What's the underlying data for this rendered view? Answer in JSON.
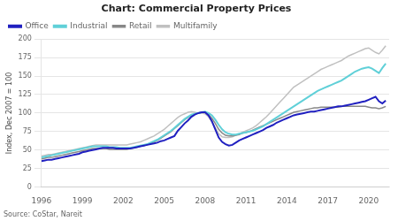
{
  "chart_data": {
    "type": "line",
    "title": "Chart: Commercial Property Prices",
    "ylabel": "Index, Dec 2007 = 100",
    "annotations": [
      "Source: CoStar, Nareit"
    ],
    "x": [
      1996,
      1996.25,
      1996.5,
      1996.75,
      1997,
      1997.25,
      1997.5,
      1997.75,
      1998,
      1998.25,
      1998.5,
      1998.75,
      1999,
      1999.25,
      1999.5,
      1999.75,
      2000,
      2000.25,
      2000.5,
      2000.75,
      2001,
      2001.25,
      2001.5,
      2001.75,
      2002,
      2002.25,
      2002.5,
      2002.75,
      2003,
      2003.25,
      2003.5,
      2003.75,
      2004,
      2004.25,
      2004.5,
      2004.75,
      2005,
      2005.25,
      2005.5,
      2005.75,
      2006,
      2006.25,
      2006.5,
      2006.75,
      2007,
      2007.25,
      2007.5,
      2007.75,
      2008,
      2008.25,
      2008.5,
      2008.75,
      2009,
      2009.25,
      2009.5,
      2009.75,
      2010,
      2010.25,
      2010.5,
      2010.75,
      2011,
      2011.25,
      2011.5,
      2011.75,
      2012,
      2012.25,
      2012.5,
      2012.75,
      2013,
      2013.25,
      2013.5,
      2013.75,
      2014,
      2014.25,
      2014.5,
      2014.75,
      2015,
      2015.25,
      2015.5,
      2015.75,
      2016,
      2016.25,
      2016.5,
      2016.75,
      2017,
      2017.25,
      2017.5,
      2017.75,
      2018,
      2018.25,
      2018.5,
      2018.75,
      2019,
      2019.25,
      2019.5,
      2019.75,
      2020,
      2020.25,
      2020.5,
      2020.75,
      2021,
      2021.25
    ],
    "series": [
      {
        "name": "Multifamily",
        "color": "#c0c0c0",
        "values": [
          42,
          43,
          44,
          44,
          45,
          46,
          47,
          48,
          49,
          50,
          51,
          52,
          53,
          54,
          55,
          56,
          57,
          57,
          57,
          57,
          57,
          57,
          57,
          57,
          57,
          57,
          58,
          59,
          60,
          61,
          63,
          65,
          67,
          69,
          72,
          75,
          78,
          82,
          86,
          90,
          94,
          97,
          99,
          101,
          102,
          101,
          100,
          100,
          99,
          95,
          88,
          80,
          72,
          68,
          67,
          67,
          68,
          70,
          72,
          74,
          76,
          78,
          80,
          83,
          87,
          91,
          95,
          100,
          105,
          110,
          115,
          120,
          125,
          130,
          135,
          138,
          141,
          144,
          147,
          150,
          153,
          156,
          159,
          161,
          163,
          165,
          167,
          169,
          171,
          174,
          177,
          179,
          181,
          183,
          185,
          187,
          188,
          185,
          182,
          180,
          185,
          191
        ]
      },
      {
        "name": "Retail",
        "color": "#888888",
        "values": [
          38,
          39,
          40,
          40,
          41,
          42,
          43,
          44,
          45,
          46,
          47,
          48,
          49,
          50,
          51,
          52,
          52,
          52,
          52,
          52,
          51,
          51,
          51,
          51,
          51,
          51,
          52,
          53,
          54,
          55,
          56,
          57,
          59,
          61,
          63,
          66,
          69,
          72,
          75,
          79,
          83,
          87,
          91,
          94,
          97,
          99,
          100,
          101,
          101,
          98,
          93,
          86,
          78,
          73,
          70,
          69,
          69,
          70,
          71,
          73,
          74,
          75,
          77,
          79,
          81,
          83,
          85,
          87,
          89,
          91,
          93,
          95,
          97,
          99,
          101,
          102,
          103,
          104,
          105,
          106,
          107,
          107,
          108,
          108,
          108,
          108,
          108,
          108,
          109,
          109,
          109,
          109,
          109,
          109,
          109,
          109,
          108,
          107,
          107,
          106,
          107,
          109
        ]
      },
      {
        "name": "Industrial",
        "color": "#60d0d8",
        "values": [
          40,
          41,
          42,
          43,
          44,
          45,
          46,
          47,
          48,
          49,
          50,
          51,
          52,
          53,
          54,
          55,
          55,
          55,
          55,
          55,
          54,
          54,
          54,
          53,
          53,
          53,
          53,
          54,
          55,
          56,
          57,
          58,
          60,
          62,
          64,
          67,
          70,
          73,
          76,
          80,
          84,
          88,
          92,
          95,
          98,
          99,
          100,
          101,
          102,
          100,
          97,
          91,
          84,
          78,
          74,
          72,
          71,
          71,
          72,
          73,
          74,
          75,
          76,
          78,
          80,
          82,
          85,
          88,
          91,
          94,
          97,
          100,
          103,
          106,
          109,
          112,
          115,
          118,
          121,
          124,
          127,
          130,
          132,
          134,
          136,
          138,
          140,
          142,
          144,
          147,
          150,
          153,
          156,
          158,
          160,
          161,
          162,
          160,
          157,
          154,
          161,
          167
        ]
      },
      {
        "name": "Office",
        "color": "#2020c0",
        "values": [
          35,
          36,
          37,
          37,
          38,
          39,
          40,
          41,
          42,
          43,
          44,
          45,
          47,
          48,
          49,
          50,
          51,
          52,
          53,
          53,
          53,
          53,
          52,
          52,
          52,
          52,
          52,
          53,
          54,
          55,
          56,
          57,
          58,
          59,
          60,
          62,
          63,
          65,
          67,
          69,
          76,
          81,
          86,
          90,
          95,
          98,
          100,
          101,
          101,
          97,
          89,
          78,
          67,
          61,
          58,
          56,
          57,
          60,
          63,
          65,
          67,
          69,
          71,
          73,
          75,
          77,
          80,
          82,
          84,
          87,
          89,
          91,
          93,
          95,
          97,
          98,
          99,
          100,
          101,
          102,
          102,
          103,
          104,
          105,
          106,
          107,
          108,
          109,
          109,
          110,
          111,
          112,
          113,
          114,
          115,
          116,
          118,
          120,
          122,
          116,
          113,
          117
        ]
      }
    ],
    "xlim": [
      1996,
      2021.5
    ],
    "xticks": [
      1996,
      1999,
      2002,
      2005,
      2008,
      2011,
      2014,
      2017,
      2020
    ],
    "ylim": [
      0,
      200
    ],
    "yticks": [
      0,
      25,
      50,
      75,
      100,
      125,
      150,
      175,
      200
    ],
    "grid": true,
    "legend": "upper left"
  }
}
